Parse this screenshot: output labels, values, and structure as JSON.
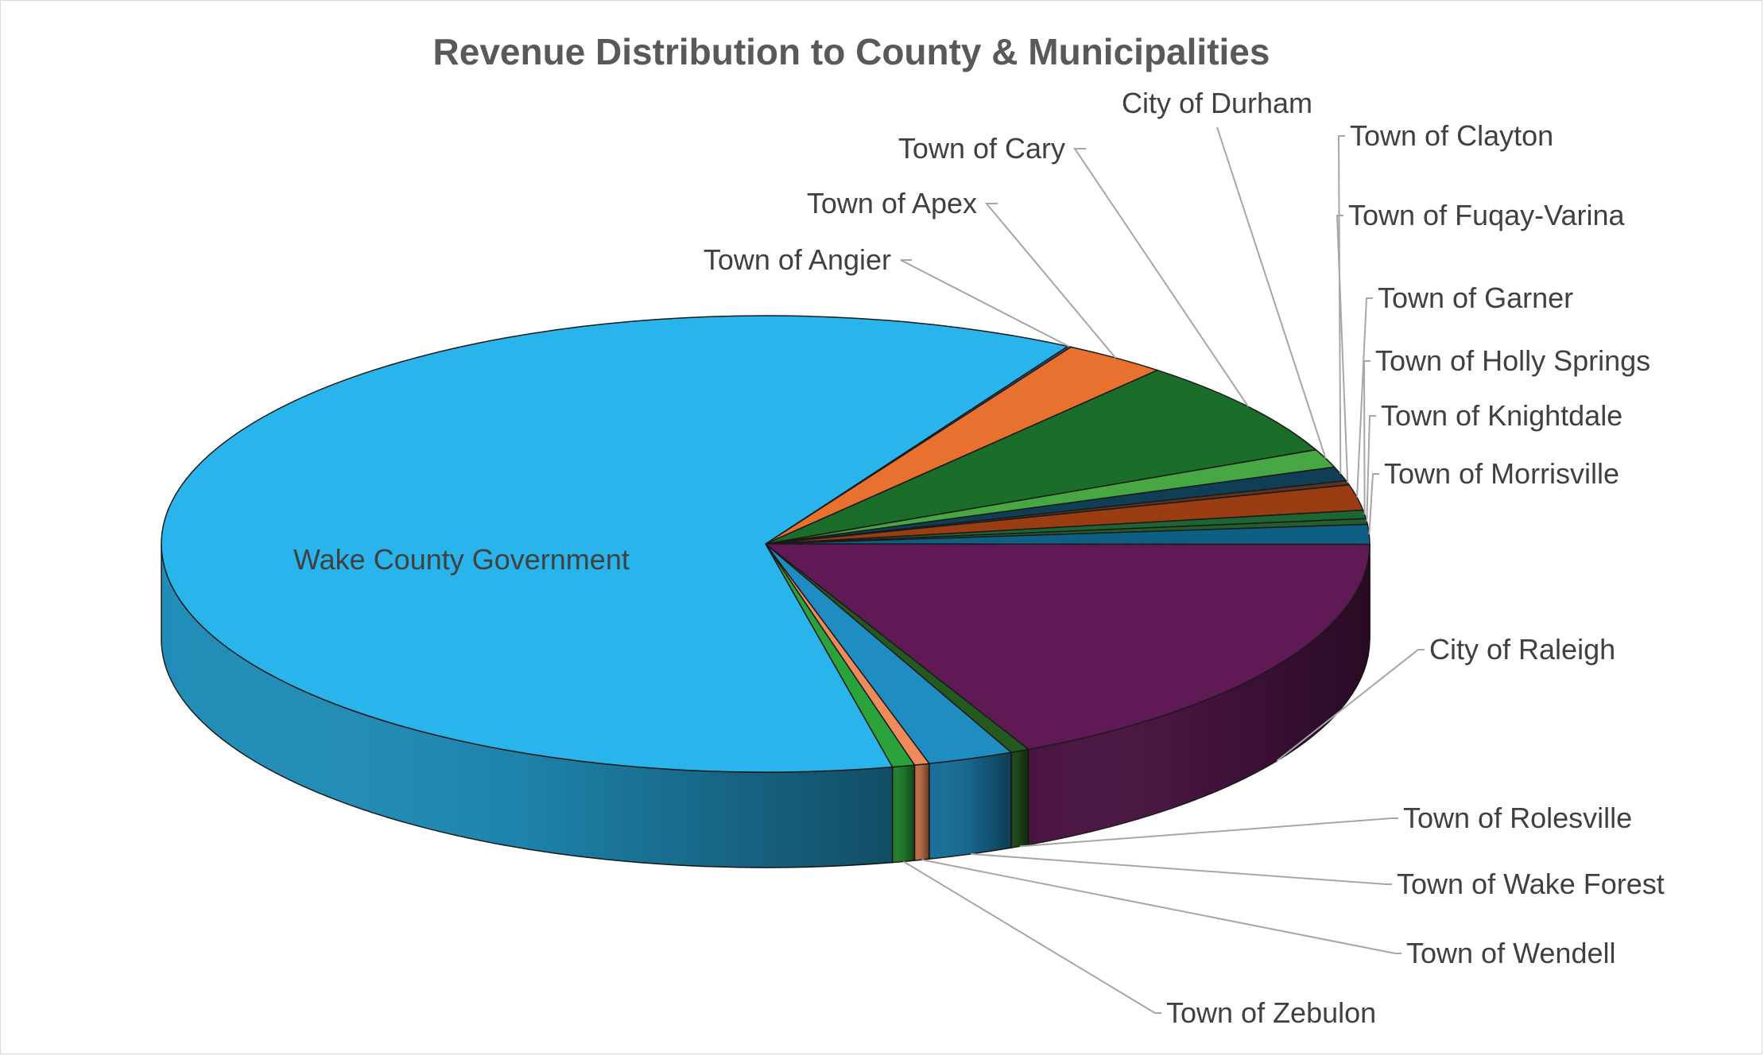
{
  "chart_data": {
    "type": "pie",
    "title": "Revenue Distribution to County & Municipalities",
    "categories": [
      "Town of Angier",
      "Town of Apex",
      "Town of Cary",
      "City of Durham",
      "Town of Clayton",
      "Town of Fuqay-Varina",
      "Town of Garner",
      "Town of Holly Springs",
      "Town of Knightdale",
      "Town of Morrisville",
      "City of Raleigh",
      "Town of Rolesville",
      "Town of Wake Forest",
      "Town of Wendell",
      "Town of Zebulon",
      "Wake County Government"
    ],
    "values": [
      0.1,
      2.8,
      7.0,
      1.3,
      1.0,
      0.3,
      1.8,
      0.6,
      0.4,
      1.4,
      17.8,
      0.5,
      2.3,
      0.4,
      0.6,
      61.7
    ],
    "colors": [
      "#1f5c99",
      "#e8712f",
      "#1a6e29",
      "#47a843",
      "#103e57",
      "#5a3520",
      "#9a3d12",
      "#1d6633",
      "#245e2d",
      "#0f5e84",
      "#5f1a55",
      "#24591f",
      "#1f8dc2",
      "#f08a5a",
      "#2aa33a",
      "#29b5ec"
    ],
    "style": "3d-pie",
    "legend": "none"
  }
}
